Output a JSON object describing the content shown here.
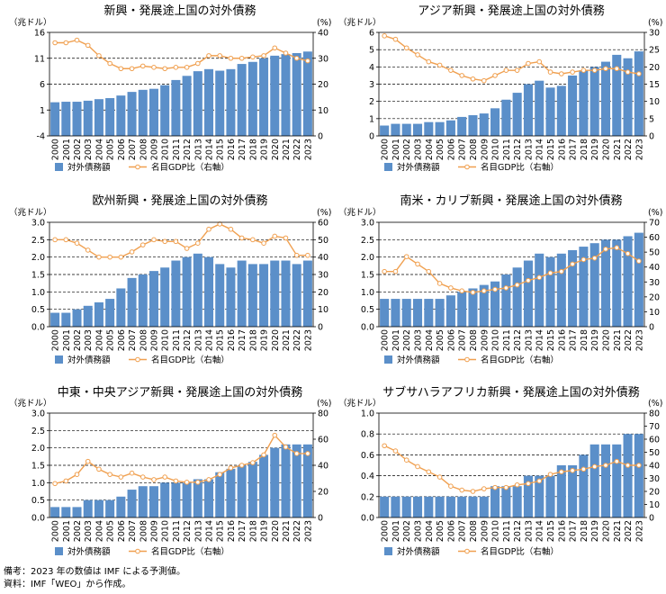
{
  "years": [
    "2000",
    "2001",
    "2002",
    "2003",
    "2004",
    "2005",
    "2006",
    "2007",
    "2008",
    "2009",
    "2010",
    "2011",
    "2012",
    "2013",
    "2014",
    "2015",
    "2016",
    "2017",
    "2018",
    "2019",
    "2020",
    "2021",
    "2022",
    "2023"
  ],
  "legend": {
    "bar_label": "対外債務額",
    "line_label": "名目GDP比（右軸）"
  },
  "colors": {
    "bar": "#5b8fc9",
    "line": "#f0a050",
    "grid": "#000000"
  },
  "notes": [
    "備考：2023 年の数値は IMF による予測値。",
    "資料：IMF「WEO」から作成。"
  ],
  "chart_data": [
    {
      "type": "bar",
      "title": "新興・発展途上国の対外債務",
      "left_unit": "（兆ドル）",
      "right_unit": "(%)",
      "ylim": [
        -4,
        16
      ],
      "yticks": [
        -4,
        1,
        6,
        11,
        16
      ],
      "y2lim": [
        0,
        40
      ],
      "y2ticks": [
        0,
        10,
        20,
        30,
        40
      ],
      "bars": [
        2.5,
        2.6,
        2.6,
        2.8,
        3.1,
        3.3,
        3.8,
        4.5,
        4.9,
        5.1,
        5.8,
        6.8,
        7.6,
        8.5,
        8.9,
        8.6,
        8.9,
        9.9,
        10.3,
        11,
        11.5,
        11.8,
        12,
        12.3
      ],
      "line": [
        36,
        36,
        37,
        35,
        31,
        28,
        26,
        26,
        27,
        26.5,
        26,
        26.5,
        26.5,
        28,
        31,
        31,
        30,
        30,
        30.5,
        31,
        34,
        32,
        30,
        29
      ]
    },
    {
      "type": "bar",
      "title": "アジア新興・発展途上国の対外債務",
      "left_unit": "（兆ドル）",
      "right_unit": "(%)",
      "ylim": [
        0,
        6
      ],
      "yticks": [
        0,
        1,
        2,
        3,
        4,
        5,
        6
      ],
      "y2lim": [
        0,
        30
      ],
      "y2ticks": [
        0,
        5,
        10,
        15,
        20,
        25,
        30
      ],
      "bars": [
        0.6,
        0.7,
        0.7,
        0.7,
        0.8,
        0.8,
        0.9,
        1.1,
        1.2,
        1.3,
        1.6,
        2.1,
        2.5,
        3,
        3.2,
        2.8,
        2.9,
        3.5,
        3.8,
        4,
        4.3,
        4.7,
        4.5,
        4.9
      ],
      "line": [
        29,
        28,
        25.5,
        23.5,
        21.5,
        20.5,
        19,
        17.5,
        16.5,
        16,
        17.5,
        19,
        19,
        21,
        21.5,
        18.5,
        18,
        18.5,
        19,
        19,
        19.5,
        19.5,
        18.5,
        18
      ]
    },
    {
      "type": "bar",
      "title": "欧州新興・発展途上国の対外債務",
      "left_unit": "（兆ドル）",
      "right_unit": "(%)",
      "ylim": [
        0,
        3
      ],
      "yticks": [
        0.0,
        0.5,
        1.0,
        1.5,
        2.0,
        2.5,
        3.0
      ],
      "y2lim": [
        0,
        60
      ],
      "y2ticks": [
        0,
        10,
        20,
        30,
        40,
        50,
        60
      ],
      "bars": [
        0.4,
        0.4,
        0.5,
        0.6,
        0.7,
        0.8,
        1.1,
        1.4,
        1.5,
        1.6,
        1.7,
        1.9,
        2,
        2.1,
        2,
        1.8,
        1.7,
        1.9,
        1.8,
        1.8,
        1.9,
        1.9,
        1.8,
        1.9
      ],
      "line": [
        50,
        50,
        48,
        44,
        40,
        40,
        40,
        43,
        47,
        50,
        49,
        49,
        45,
        48,
        56,
        59,
        56,
        51,
        50,
        48,
        52,
        51,
        41,
        41
      ]
    },
    {
      "type": "bar",
      "title": "南米・カリブ新興・発展途上国の対外債務",
      "left_unit": "（兆ドル）",
      "right_unit": "(%)",
      "ylim": [
        0,
        3
      ],
      "yticks": [
        0.0,
        0.5,
        1.0,
        1.5,
        2.0,
        2.5,
        3.0
      ],
      "y2lim": [
        0,
        70
      ],
      "y2ticks": [
        0,
        10,
        20,
        30,
        40,
        50,
        60,
        70
      ],
      "bars": [
        0.8,
        0.8,
        0.8,
        0.8,
        0.8,
        0.8,
        0.9,
        1,
        1.1,
        1.2,
        1.3,
        1.5,
        1.7,
        1.9,
        2.1,
        2,
        2.1,
        2.2,
        2.3,
        2.4,
        2.5,
        2.5,
        2.6,
        2.7
      ],
      "line": [
        37,
        37,
        47,
        42,
        37,
        29,
        26,
        24,
        23,
        24,
        25,
        26,
        28,
        31,
        33,
        36,
        37,
        42,
        45,
        46,
        52,
        53,
        49,
        44
      ]
    },
    {
      "type": "bar",
      "title": "中東・中央アジア新興・発展途上国の対外債務",
      "left_unit": "（兆ドル）",
      "right_unit": "(%)",
      "ylim": [
        0,
        3
      ],
      "yticks": [
        0.0,
        0.5,
        1.0,
        1.5,
        2.0,
        2.5,
        3.0
      ],
      "y2lim": [
        0,
        80
      ],
      "y2ticks": [
        0,
        20,
        40,
        60,
        80
      ],
      "bars": [
        0.3,
        0.3,
        0.3,
        0.5,
        0.5,
        0.5,
        0.6,
        0.8,
        0.9,
        0.9,
        1,
        1,
        1,
        1.1,
        1.1,
        1.3,
        1.4,
        1.5,
        1.6,
        1.8,
        2,
        2.1,
        2.1,
        2.1
      ],
      "line": [
        26,
        28,
        33,
        43,
        37,
        33,
        31,
        34,
        31,
        29,
        31,
        28,
        27,
        27,
        29,
        33,
        38,
        40,
        42,
        48,
        63,
        54,
        49,
        49
      ]
    },
    {
      "type": "bar",
      "title": "サブサハラアフリカ新興・発展途上国の対外債務",
      "left_unit": "（兆ドル）",
      "right_unit": "(%)",
      "ylim": [
        0,
        1
      ],
      "yticks": [
        0.0,
        0.2,
        0.4,
        0.6,
        0.8,
        1.0
      ],
      "y2lim": [
        0,
        80
      ],
      "y2ticks": [
        0,
        10,
        20,
        30,
        40,
        50,
        60,
        70,
        80
      ],
      "bars": [
        0.2,
        0.2,
        0.2,
        0.2,
        0.2,
        0.2,
        0.2,
        0.2,
        0.2,
        0.2,
        0.3,
        0.3,
        0.3,
        0.4,
        0.4,
        0.4,
        0.5,
        0.5,
        0.6,
        0.7,
        0.7,
        0.7,
        0.8,
        0.8
      ],
      "line": [
        55,
        51,
        44,
        39,
        35,
        31,
        24,
        21,
        20,
        22,
        23,
        23,
        25,
        26,
        28,
        33,
        35,
        36,
        37,
        39,
        40,
        43,
        40,
        40
      ]
    }
  ]
}
